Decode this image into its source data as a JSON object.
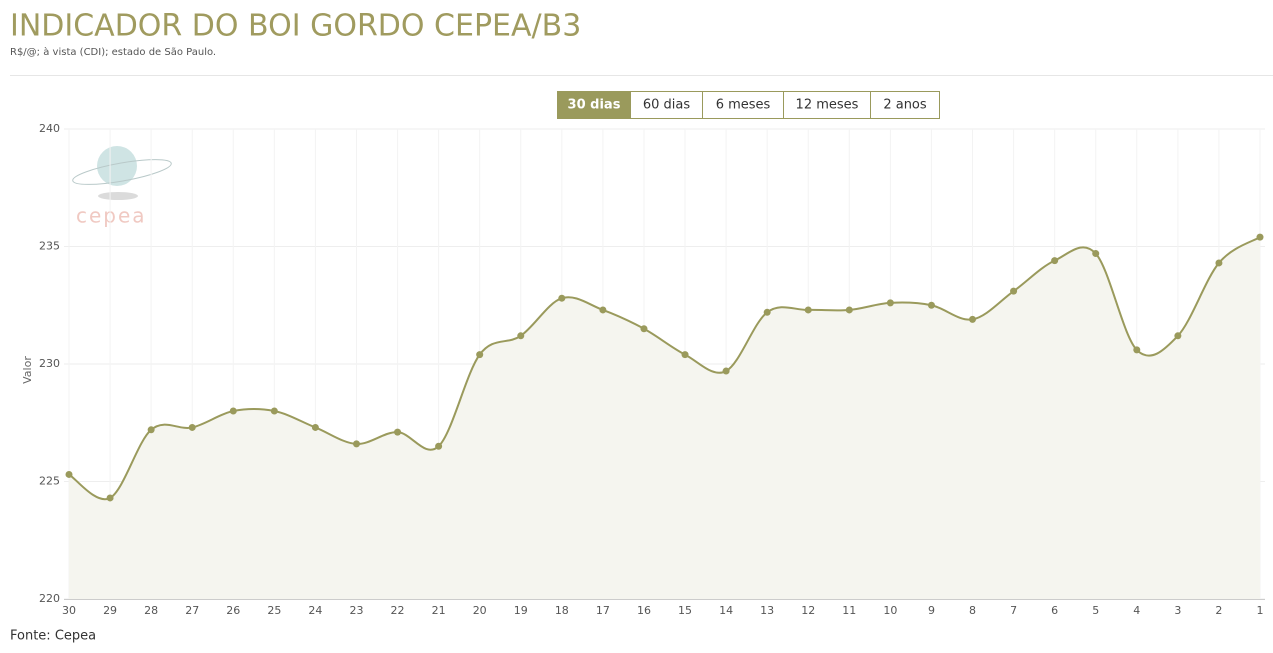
{
  "header": {
    "title": "INDICADOR DO BOI GORDO CEPEA/B3",
    "subtitle": "R$/@; à vista (CDI); estado de São Paulo."
  },
  "range_options": {
    "labels": [
      "30 dias",
      "60 dias",
      "6 meses",
      "12 meses",
      "2 anos"
    ],
    "selected": 0
  },
  "logo": "cepea",
  "source": "Fonte: Cepea",
  "chart_data": {
    "type": "line",
    "y_label": "Valor",
    "categories": [
      "30",
      "29",
      "28",
      "27",
      "26",
      "25",
      "24",
      "23",
      "22",
      "21",
      "20",
      "19",
      "18",
      "17",
      "16",
      "15",
      "14",
      "13",
      "12",
      "11",
      "10",
      "9",
      "8",
      "7",
      "6",
      "5",
      "4",
      "3",
      "2",
      "1"
    ],
    "values": [
      225.3,
      224.3,
      227.2,
      227.3,
      228.0,
      228.0,
      227.3,
      226.6,
      227.1,
      226.5,
      230.4,
      231.2,
      232.8,
      232.3,
      231.5,
      230.4,
      229.7,
      232.2,
      232.3,
      232.3,
      232.6,
      232.5,
      231.9,
      233.1,
      234.4,
      234.7,
      230.6,
      231.2,
      234.3,
      235.4
    ],
    "color": "#9a9a5c",
    "ylim": [
      220,
      240
    ],
    "yticks": [
      220,
      225,
      230,
      235,
      240
    ],
    "grid": true,
    "area": true
  }
}
